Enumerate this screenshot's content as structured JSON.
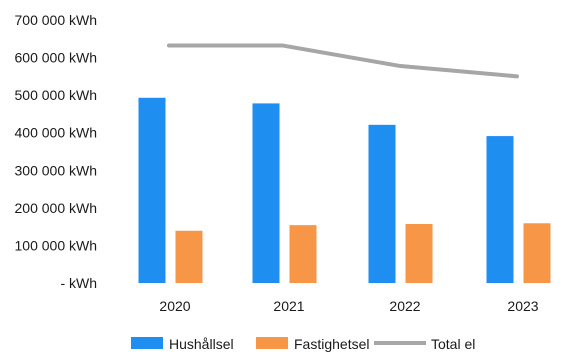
{
  "chart_data": {
    "type": "bar",
    "categories": [
      "2020",
      "2021",
      "2022",
      "2023"
    ],
    "ytick_labels": [
      "- kWh",
      "100 000 kWh",
      "200 000 kWh",
      "300 000 kWh",
      "400 000 kWh",
      "500 000 kWh",
      "600 000 kWh",
      "700 000 kWh"
    ],
    "ylim": [
      0,
      700000
    ],
    "grid": false,
    "legend_position": "bottom",
    "series": [
      {
        "name": "Hushållsel",
        "kind": "bar",
        "color": "#1f8ef1",
        "values": [
          493000,
          478000,
          421000,
          391000
        ]
      },
      {
        "name": "Fastighetsel",
        "kind": "bar",
        "color": "#f79646",
        "values": [
          139000,
          154000,
          157000,
          159000
        ]
      },
      {
        "name": "Total el",
        "kind": "line",
        "color": "#a6a6a6",
        "values": [
          632000,
          632000,
          578000,
          550000
        ]
      }
    ]
  }
}
